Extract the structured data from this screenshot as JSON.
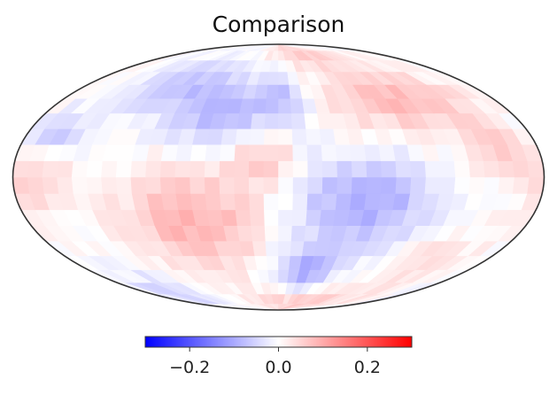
{
  "chart_data": {
    "type": "heatmap",
    "title": "Comparison",
    "projection": "mollweide",
    "grid": false,
    "colormap": "bwr",
    "colors": {
      "low": "#0000ff",
      "mid": "#ffffff",
      "high": "#ff0000",
      "outline": "#333333"
    },
    "colorbar": {
      "placement": "bottom",
      "vmin": -0.3,
      "vmax": 0.3,
      "ticks": [
        -0.2,
        0.0,
        0.2
      ],
      "tick_labels": [
        "−0.2",
        "0.0",
        "0.2"
      ]
    },
    "grid_lon_step_deg": 10,
    "grid_lat_step_deg": 9,
    "features": [
      {
        "lon": -45,
        "lat": 40,
        "dlon": 30,
        "dlat": 16,
        "amp": -0.09
      },
      {
        "lon": -100,
        "lat": 55,
        "dlon": 25,
        "dlat": 12,
        "amp": -0.06
      },
      {
        "lon": -160,
        "lat": 25,
        "dlon": 18,
        "dlat": 10,
        "amp": -0.06
      },
      {
        "lon": 60,
        "lat": -15,
        "dlon": 35,
        "dlat": 18,
        "amp": -0.1
      },
      {
        "lon": 25,
        "lat": -55,
        "dlon": 20,
        "dlat": 12,
        "amp": -0.09
      },
      {
        "lon": -140,
        "lat": -70,
        "dlon": 30,
        "dlat": 10,
        "amp": -0.05
      },
      {
        "lon": 5,
        "lat": 45,
        "dlon": 12,
        "dlat": 12,
        "amp": -0.06
      },
      {
        "lon": 100,
        "lat": 45,
        "dlon": 40,
        "dlat": 15,
        "amp": 0.08
      },
      {
        "lon": -60,
        "lat": -25,
        "dlon": 35,
        "dlat": 22,
        "amp": 0.09
      },
      {
        "lon": -10,
        "lat": 10,
        "dlon": 15,
        "dlat": 10,
        "amp": 0.07
      },
      {
        "lon": 160,
        "lat": 15,
        "dlon": 20,
        "dlat": 12,
        "amp": 0.05
      },
      {
        "lon": -165,
        "lat": -5,
        "dlon": 20,
        "dlat": 12,
        "amp": 0.05
      },
      {
        "lon": 40,
        "lat": 80,
        "dlon": 40,
        "dlat": 10,
        "amp": 0.06
      },
      {
        "lon": 40,
        "lat": -80,
        "dlon": 60,
        "dlat": 8,
        "amp": 0.07
      },
      {
        "lon": 130,
        "lat": -50,
        "dlon": 25,
        "dlat": 15,
        "amp": 0.04
      }
    ]
  }
}
